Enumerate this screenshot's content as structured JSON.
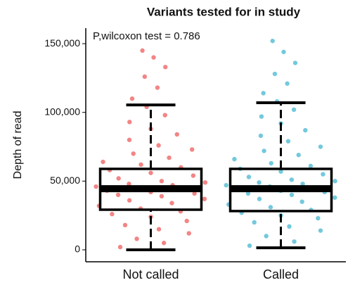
{
  "chart_data": {
    "type": "box",
    "title": "Variants tested for in study",
    "annotation": "P,wilcoxon test = 0.786",
    "y_label": "Depth of read",
    "categories": [
      "Not called",
      "Called"
    ],
    "ylim": [
      -8700,
      161300
    ],
    "yticks": [
      0,
      {
        "value": 50000,
        "label": "50,000"
      },
      {
        "value": 100000,
        "label": "100,000"
      },
      {
        "value": 150000,
        "label": "150,000"
      }
    ],
    "boxes": [
      {
        "color": "#f07070",
        "min": 0,
        "q1": 29200,
        "median": 44500,
        "q3": 58900,
        "max": 105400,
        "points": [
          2000,
          5000,
          8000,
          12000,
          15000,
          18000,
          21000,
          24000,
          26000,
          28000,
          30000,
          32000,
          34000,
          36000,
          37000,
          39000,
          40000,
          41000,
          42000,
          43000,
          44000,
          45000,
          46000,
          47000,
          48000,
          49000,
          50000,
          52000,
          54000,
          56000,
          58000,
          60000,
          62000,
          64000,
          67000,
          70000,
          73000,
          76000,
          80000,
          84000,
          88000,
          93000,
          98000,
          104000,
          110000,
          118000,
          126000,
          133000,
          140000,
          145000
        ]
      },
      {
        "color": "#5bbfd6",
        "min": 1500,
        "q1": 28200,
        "median": 44500,
        "q3": 58900,
        "max": 107000,
        "points": [
          3000,
          6000,
          10000,
          14000,
          17000,
          20000,
          23000,
          25000,
          27000,
          29000,
          31000,
          33000,
          35000,
          37000,
          38000,
          40000,
          41000,
          42000,
          43000,
          44000,
          45000,
          46000,
          47000,
          48000,
          49000,
          50000,
          51000,
          53000,
          55000,
          57000,
          59000,
          61000,
          63000,
          66000,
          69000,
          72000,
          75000,
          79000,
          83000,
          87000,
          92000,
          97000,
          102000,
          108000,
          114000,
          121000,
          128000,
          136000,
          144000,
          152000
        ]
      }
    ]
  }
}
